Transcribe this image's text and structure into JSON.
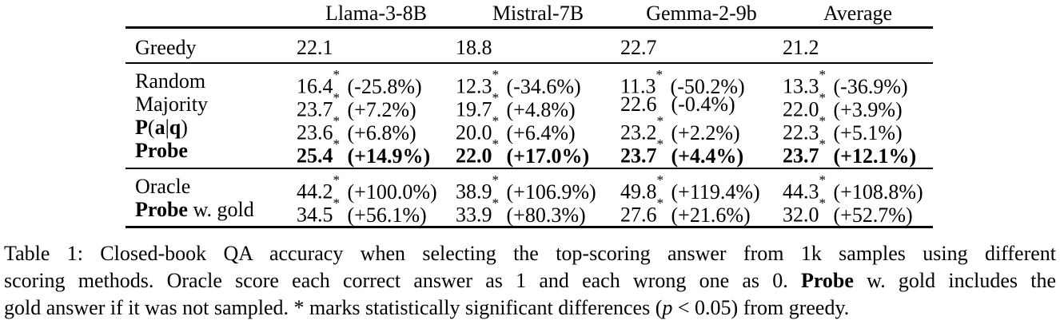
{
  "table": {
    "col_headers": [
      "Llama-3-8B",
      "Mistral-7B",
      "Gemma-2-9b",
      "Average"
    ],
    "rows": [
      {
        "label": "Greedy",
        "cells": [
          {
            "v": "22.1",
            "s": "",
            "d": ""
          },
          {
            "v": "18.8",
            "s": "",
            "d": ""
          },
          {
            "v": "22.7",
            "s": "",
            "d": ""
          },
          {
            "v": "21.2",
            "s": "",
            "d": ""
          }
        ]
      },
      {
        "label": "Random",
        "cells": [
          {
            "v": "16.4",
            "s": "*",
            "d": "(-25.8%)"
          },
          {
            "v": "12.3",
            "s": "*",
            "d": "(-34.6%)"
          },
          {
            "v": "11.3",
            "s": "*",
            "d": "(-50.2%)"
          },
          {
            "v": "13.3",
            "s": "*",
            "d": "(-36.9%)"
          }
        ]
      },
      {
        "label": "Majority",
        "cells": [
          {
            "v": "23.7",
            "s": "*",
            "d": "(+7.2%)"
          },
          {
            "v": "19.7",
            "s": "*",
            "d": "(+4.8%)"
          },
          {
            "v": "22.6",
            "s": "",
            "d": "(-0.4%)"
          },
          {
            "v": "22.0",
            "s": "*",
            "d": "(+3.9%)"
          }
        ]
      },
      {
        "label_parts": [
          "P",
          "(",
          "a",
          "|",
          "q",
          ")"
        ],
        "cells": [
          {
            "v": "23.6",
            "s": "*",
            "d": "(+6.8%)"
          },
          {
            "v": "20.0",
            "s": "*",
            "d": "(+6.4%)"
          },
          {
            "v": "23.2",
            "s": "*",
            "d": "(+2.2%)"
          },
          {
            "v": "22.3",
            "s": "*",
            "d": "(+5.1%)"
          }
        ]
      },
      {
        "label": "Probe",
        "cells": [
          {
            "v": "25.4",
            "s": "*",
            "d": "(+14.9%)"
          },
          {
            "v": "22.0",
            "s": "*",
            "d": "(+17.0%)"
          },
          {
            "v": "23.7",
            "s": "*",
            "d": "(+4.4%)"
          },
          {
            "v": "23.7",
            "s": "*",
            "d": "(+12.1%)"
          }
        ]
      },
      {
        "label": "Oracle",
        "cells": [
          {
            "v": "44.2",
            "s": "*",
            "d": "(+100.0%)"
          },
          {
            "v": "38.9",
            "s": "*",
            "d": "(+106.9%)"
          },
          {
            "v": "49.8",
            "s": "*",
            "d": "(+119.4%)"
          },
          {
            "v": "44.3",
            "s": "*",
            "d": "(+108.8%)"
          }
        ]
      },
      {
        "label_parts": [
          "Probe",
          " w. gold"
        ],
        "cells": [
          {
            "v": "34.5",
            "s": "*",
            "d": "(+56.1%)"
          },
          {
            "v": "33.9",
            "s": "*",
            "d": "(+80.3%)"
          },
          {
            "v": "27.6",
            "s": "*",
            "d": "(+21.6%)"
          },
          {
            "v": "32.0",
            "s": "*",
            "d": "(+52.7%)"
          }
        ]
      }
    ]
  },
  "caption": {
    "line1": "Table 1: Closed-book QA accuracy when selecting the top-scoring answer from 1k samples using different",
    "line2_pre": "scoring methods. Oracle score each correct answer as 1 and each wrong one as 0. ",
    "line2_bold": "Probe",
    "line2_post": " w. gold includes the",
    "line3_pre": "gold answer if it was not sampled. * marks statistically significant differences (",
    "line3_italic": "p",
    "line3_post": " < 0.05) from greedy."
  }
}
